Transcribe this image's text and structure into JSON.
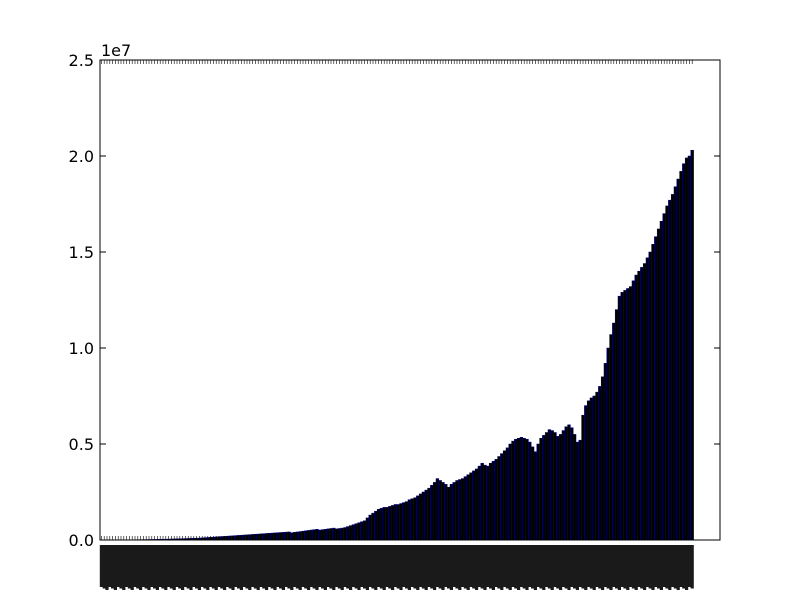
{
  "chart_data": {
    "type": "bar",
    "title": "",
    "xlabel": "",
    "ylabel": "",
    "y_offset_label": "1e7",
    "ylim": [
      0,
      25000000
    ],
    "yticks": [
      0,
      5000000,
      10000000,
      15000000,
      20000000,
      25000000
    ],
    "ytick_labels": [
      "0.0",
      "0.5",
      "1.0",
      "1.5",
      "2.0",
      "2.5"
    ],
    "xtick_labels_legible": false,
    "grid": false,
    "legend": "none",
    "bar_fill": "#000000",
    "bar_edge": "#000080",
    "values": [
      2000,
      3000,
      3000,
      4000,
      5000,
      6000,
      7000,
      8000,
      9000,
      10000,
      11000,
      12000,
      14000,
      16000,
      18000,
      20000,
      22000,
      25000,
      28000,
      30000,
      33000,
      36000,
      40000,
      44000,
      48000,
      52000,
      56000,
      60000,
      65000,
      70000,
      75000,
      80000,
      85000,
      90000,
      95000,
      100000,
      110000,
      120000,
      130000,
      140000,
      150000,
      160000,
      170000,
      180000,
      190000,
      200000,
      210000,
      220000,
      230000,
      240000,
      250000,
      260000,
      270000,
      280000,
      290000,
      300000,
      310000,
      320000,
      330000,
      340000,
      350000,
      360000,
      370000,
      380000,
      390000,
      400000,
      410000,
      420000,
      380000,
      400000,
      420000,
      440000,
      460000,
      480000,
      500000,
      520000,
      540000,
      560000,
      520000,
      540000,
      560000,
      580000,
      600000,
      620000,
      580000,
      600000,
      620000,
      650000,
      700000,
      750000,
      800000,
      850000,
      900000,
      950000,
      1000000,
      1150000,
      1300000,
      1400000,
      1500000,
      1600000,
      1650000,
      1700000,
      1700000,
      1750000,
      1800000,
      1850000,
      1850000,
      1900000,
      1950000,
      2000000,
      2100000,
      2150000,
      2200000,
      2300000,
      2400000,
      2500000,
      2600000,
      2700000,
      2850000,
      3000000,
      3200000,
      3100000,
      3000000,
      2900000,
      2750000,
      2900000,
      3000000,
      3100000,
      3150000,
      3200000,
      3300000,
      3400000,
      3500000,
      3600000,
      3700000,
      3850000,
      4000000,
      3900000,
      3850000,
      4000000,
      4100000,
      4200000,
      4350000,
      4500000,
      4650000,
      4800000,
      5000000,
      5150000,
      5250000,
      5300000,
      5350000,
      5300000,
      5250000,
      5100000,
      4850000,
      4600000,
      5000000,
      5300000,
      5450000,
      5600000,
      5750000,
      5700000,
      5600000,
      5400000,
      5500000,
      5700000,
      5900000,
      6000000,
      5850000,
      5500000,
      5100000,
      5200000,
      6500000,
      7000000,
      7250000,
      7400000,
      7500000,
      7700000,
      8000000,
      8500000,
      9200000,
      10000000,
      10700000,
      11300000,
      12000000,
      12700000,
      12900000,
      13000000,
      13100000,
      13200000,
      13500000,
      13800000,
      14000000,
      14200000,
      14400000,
      14700000,
      15000000,
      15400000,
      15800000,
      16200000,
      16600000,
      17000000,
      17400000,
      17700000,
      18000000,
      18400000,
      18800000,
      19200000,
      19600000,
      19900000,
      20000000,
      20300000
    ]
  }
}
